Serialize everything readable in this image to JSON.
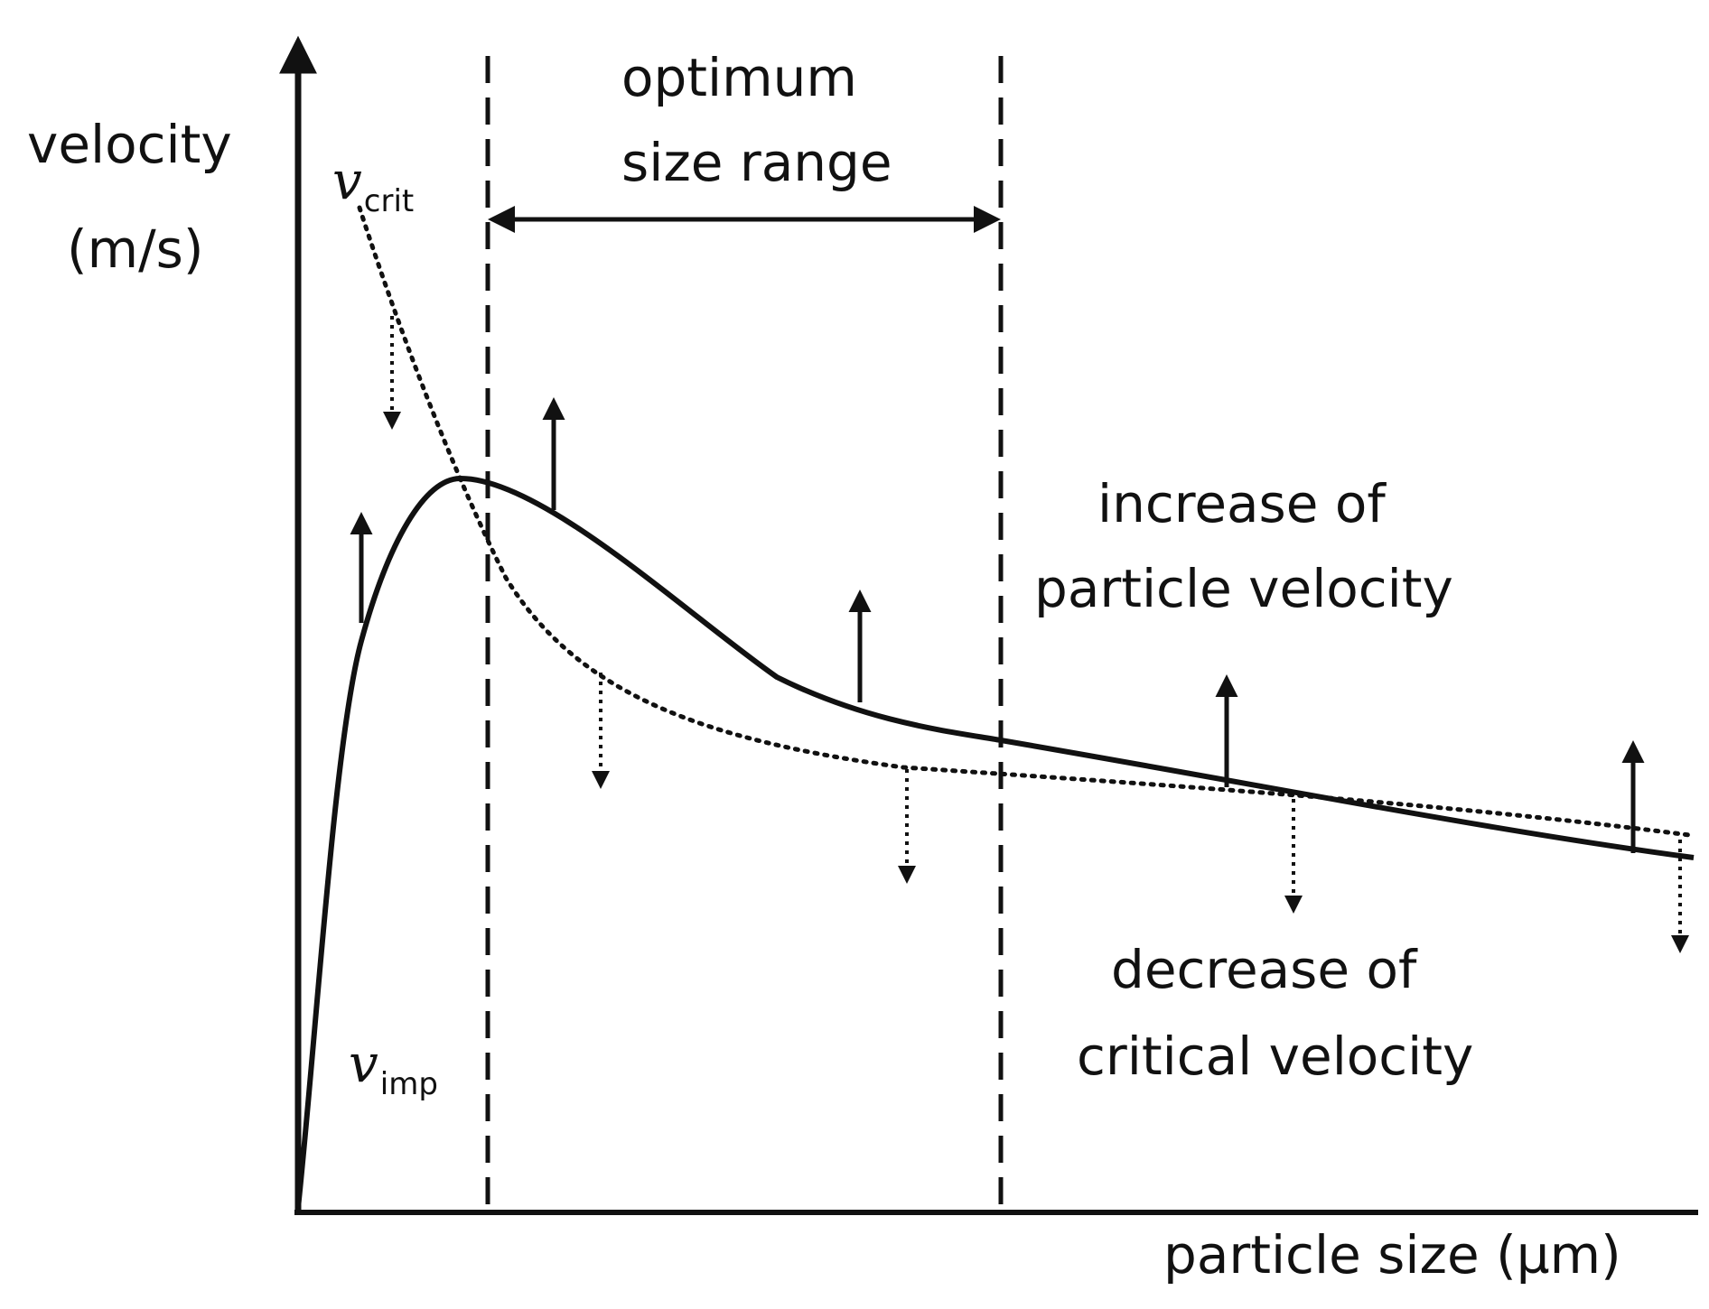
{
  "axes": {
    "y_label_line1": "velocity",
    "y_label_line2": "(m/s)",
    "x_label": "particle size (µm)"
  },
  "range": {
    "label_line1": "optimum",
    "label_line2": "size range"
  },
  "curves": {
    "critical": {
      "symbol": "v",
      "subscript": "crit",
      "style": "dotted"
    },
    "impact": {
      "symbol": "v",
      "subscript": "imp",
      "style": "solid"
    }
  },
  "annotations": {
    "increase_line1": "increase of",
    "increase_line2": "particle velocity",
    "decrease_line1": "decrease of",
    "decrease_line2": "critical velocity"
  },
  "colors": {
    "ink": "#111111",
    "background": "#ffffff"
  }
}
